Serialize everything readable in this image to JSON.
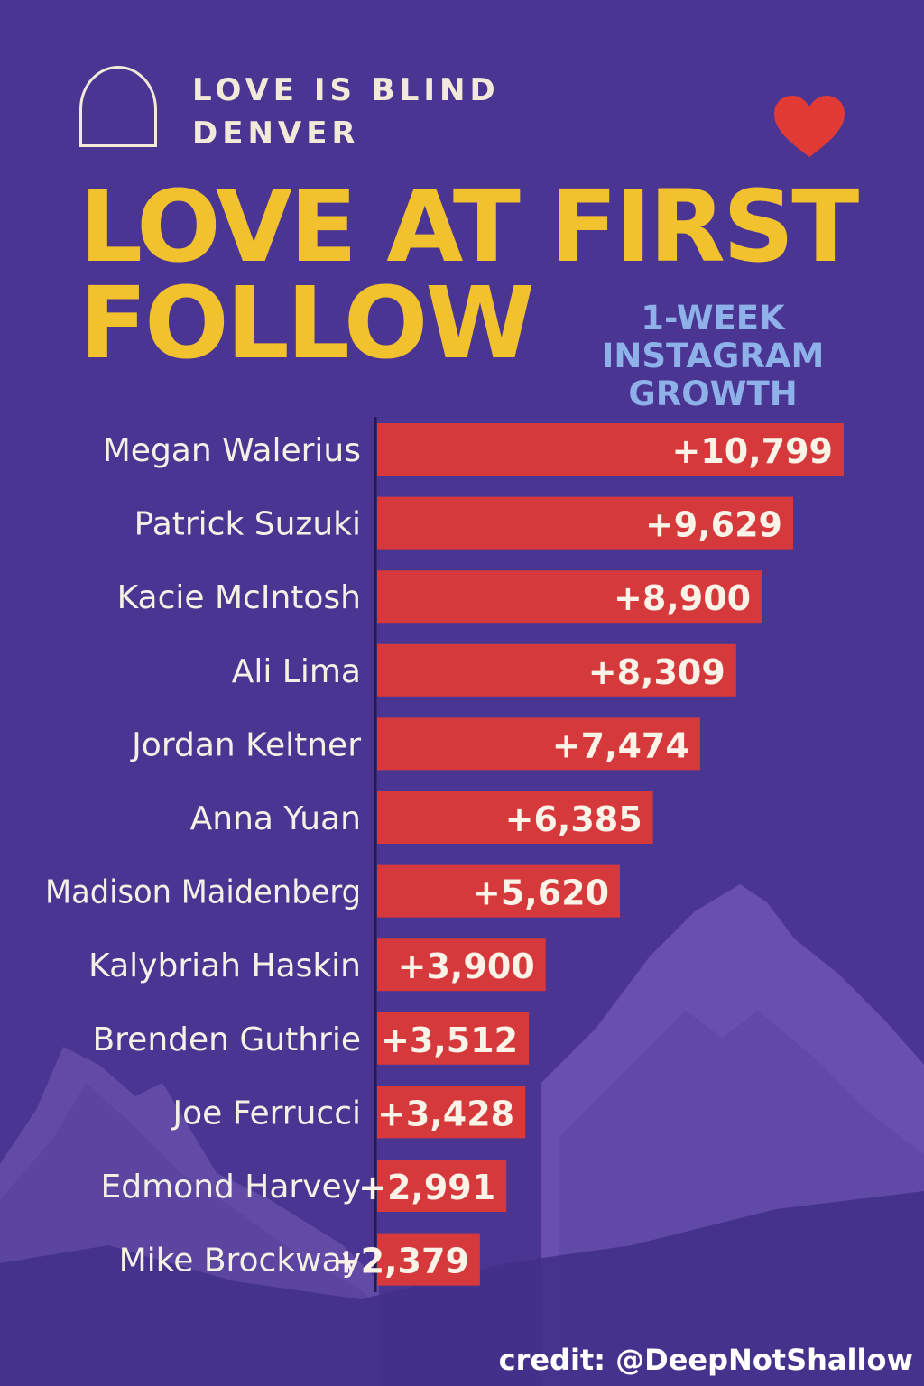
{
  "brand": {
    "line1": "LOVE IS BLIND",
    "line2": "DENVER"
  },
  "title": {
    "line1": "LOVE AT FIRST",
    "line2": "FOLLOW"
  },
  "subtitle": {
    "line1": "1-WEEK",
    "line2": "INSTAGRAM",
    "line3": "GROWTH"
  },
  "credit": "credit: @DeepNotShallow",
  "colors": {
    "background": "#4b3593",
    "bar": "#d6393b",
    "title": "#f2c12e",
    "subtitle": "#8fb1ea",
    "label": "#f5f0e6",
    "heart": "#e23a35"
  },
  "icons": [
    "logo-arch-icon",
    "heart-icon",
    "mountains-illustration"
  ],
  "chart_data": {
    "type": "bar",
    "orientation": "horizontal",
    "categories": [
      "Megan Walerius",
      "Patrick Suzuki",
      "Kacie McIntosh",
      "Ali Lima",
      "Jordan Keltner",
      "Anna Yuan",
      "Madison Maidenberg",
      "Kalybriah Haskin",
      "Brenden Guthrie",
      "Joe Ferrucci",
      "Edmond Harvey",
      "Mike Brockway"
    ],
    "values": [
      10799,
      9629,
      8900,
      8309,
      7474,
      6385,
      5620,
      3900,
      3512,
      3428,
      2991,
      2379
    ],
    "data_labels": [
      "+10,799",
      "+9,629",
      "+8,900",
      "+8,309",
      "+7,474",
      "+6,385",
      "+5,620",
      "+3,900",
      "+3,512",
      "+3,428",
      "+2,991",
      "+2,379"
    ],
    "title": "LOVE AT FIRST FOLLOW",
    "subtitle": "1-WEEK INSTAGRAM GROWTH",
    "xlabel": "",
    "ylabel": "",
    "grid": false,
    "legend": "none"
  }
}
